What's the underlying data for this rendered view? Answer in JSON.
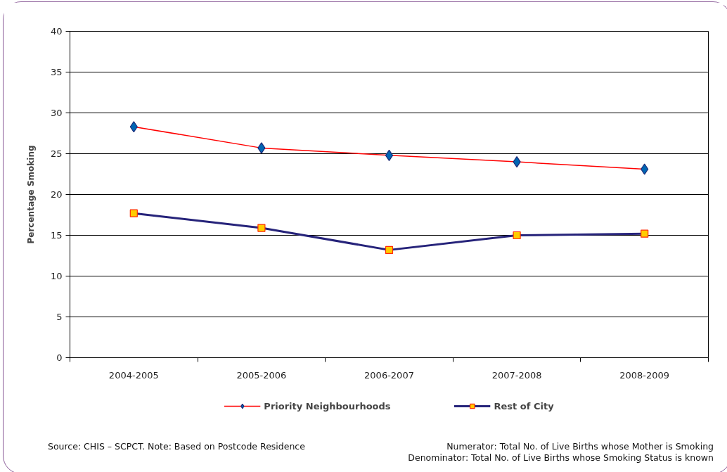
{
  "chart_data": {
    "type": "line",
    "ylabel": "Percentage Smoking",
    "categories": [
      "2004-2005",
      "2005-2006",
      "2006-2007",
      "2007-2008",
      "2008-2009"
    ],
    "series": [
      {
        "name": "Priority Neighbourhoods",
        "color": "#ff0000",
        "colors": [
          "#0066b3",
          "#0066b3",
          "#0066b3",
          "#0066b3",
          "#0066b3"
        ],
        "marker": "diamond",
        "values": [
          28.3,
          25.7,
          24.8,
          24.0,
          23.1
        ]
      },
      {
        "name": "Rest of City",
        "color": "#26237a",
        "colors": [
          "#ffcc00",
          "#ffcc00",
          "#ffcc00",
          "#ffcc00",
          "#ffcc00"
        ],
        "marker": "square",
        "values": [
          17.7,
          15.9,
          13.2,
          15.0,
          15.2
        ]
      }
    ],
    "ylim": [
      0,
      40
    ],
    "yticks": [
      0,
      5,
      10,
      15,
      20,
      25,
      30,
      35,
      40
    ],
    "grid": "y",
    "legend": "bottom",
    "line_style": "solid",
    "annotations": [
      "Source: CHIS – SCPCT. Note: Based on Postcode Residence",
      "Numerator: Total No. of Live Births whose Mother is Smoking",
      "Denominator: Total No. of Live Births whose Smoking Status is known"
    ]
  }
}
